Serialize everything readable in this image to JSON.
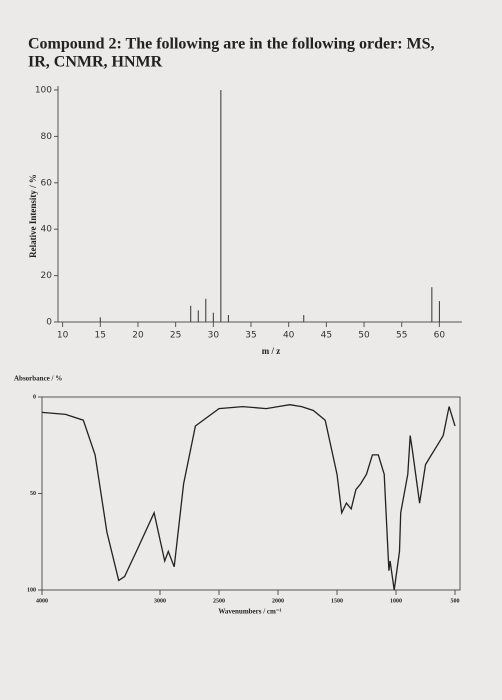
{
  "heading": [
    "Compound 2: The following are in the following order: MS,",
    "IR, CNMR, HNMR"
  ],
  "chart_data": [
    {
      "type": "bar",
      "x_label": "m / z",
      "y_label": "Relative Intensity / %",
      "x": [
        15,
        27,
        28,
        29,
        30,
        31,
        32,
        42,
        59,
        60
      ],
      "values": [
        2,
        7,
        5,
        10,
        4,
        100,
        3,
        3,
        15,
        9
      ],
      "color": "#333333",
      "xlim": [
        7,
        63
      ],
      "xticks": [
        10,
        15,
        20,
        25,
        30,
        35,
        40,
        45,
        50,
        55,
        60
      ],
      "ylim": [
        0,
        100
      ],
      "yticks": [
        0,
        20,
        40,
        60,
        80,
        100
      ]
    },
    {
      "type": "line",
      "x_label": "Wavenumbers / cm⁻¹",
      "y_label": "Absorbance / %",
      "x": [
        4000,
        3800,
        3650,
        3550,
        3450,
        3350,
        3300,
        3200,
        3050,
        2960,
        2930,
        2880,
        2800,
        2700,
        2500,
        2300,
        2100,
        2000,
        1900,
        1800,
        1700,
        1600,
        1500,
        1460,
        1420,
        1380,
        1340,
        1300,
        1250,
        1200,
        1150,
        1100,
        1060,
        1050,
        1015,
        970,
        960,
        900,
        880,
        860,
        800,
        750,
        700,
        650,
        600,
        550,
        500
      ],
      "values": [
        8,
        9,
        12,
        30,
        70,
        95,
        93,
        80,
        60,
        85,
        80,
        88,
        45,
        15,
        6,
        5,
        6,
        5,
        4,
        5,
        7,
        12,
        40,
        60,
        55,
        58,
        48,
        45,
        40,
        30,
        30,
        40,
        90,
        85,
        100,
        80,
        60,
        40,
        20,
        28,
        55,
        35,
        30,
        25,
        20,
        5,
        15
      ],
      "color": "#222222",
      "xlim": [
        4000,
        500
      ],
      "xticks": [
        4000,
        3000,
        2500,
        2000,
        1500,
        1000,
        500
      ],
      "ylim": [
        100,
        0
      ],
      "yticks": [
        0,
        50,
        100
      ]
    }
  ]
}
